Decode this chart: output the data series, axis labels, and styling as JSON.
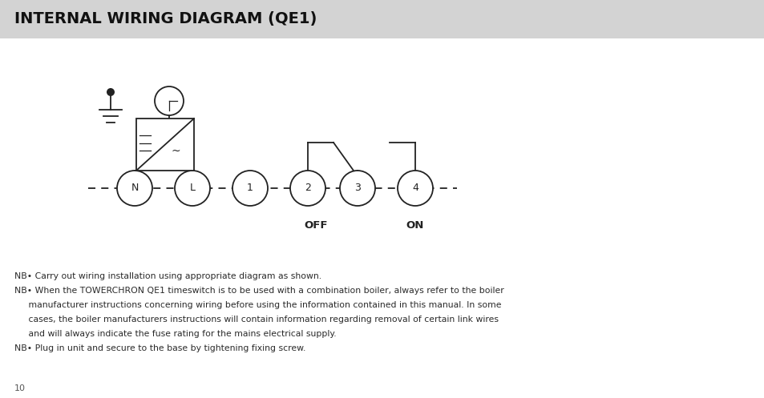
{
  "title": "INTERNAL WIRING DIAGRAM (QE1)",
  "title_bg": "#d3d3d3",
  "bg_color": "#ffffff",
  "line_color": "#222222",
  "line_width": 1.3,
  "page_number": "10",
  "nb_lines": [
    [
      "NB",
      "• Carry out wiring installation using appropriate diagram as shown."
    ],
    [
      "NB",
      "• When the TOWERCHRON QE1 timeswitch is to be used with a combination boiler, always refer to the boiler"
    ],
    [
      "",
      "     manufacturer instructions concerning wiring before using the information contained in this manual. In some"
    ],
    [
      "",
      "     cases, the boiler manufacturers instructions will contain information regarding removal of certain link wires"
    ],
    [
      "",
      "     and will always indicate the fuse rating for the mains electrical supply."
    ],
    [
      "NB",
      "• Plug in unit and secure to the base by tightening fixing screw."
    ]
  ]
}
